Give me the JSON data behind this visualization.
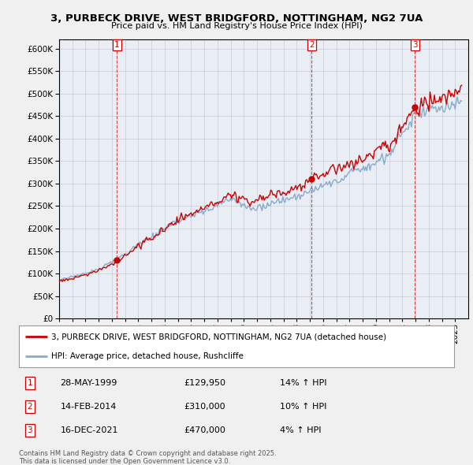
{
  "title1": "3, PURBECK DRIVE, WEST BRIDGFORD, NOTTINGHAM, NG2 7UA",
  "title2": "Price paid vs. HM Land Registry's House Price Index (HPI)",
  "legend_red": "3, PURBECK DRIVE, WEST BRIDGFORD, NOTTINGHAM, NG2 7UA (detached house)",
  "legend_blue": "HPI: Average price, detached house, Rushcliffe",
  "transactions": [
    {
      "num": 1,
      "date": "28-MAY-1999",
      "price": "£129,950",
      "hpi": "14% ↑ HPI",
      "year": 1999.38
    },
    {
      "num": 2,
      "date": "14-FEB-2014",
      "price": "£310,000",
      "hpi": "10% ↑ HPI",
      "year": 2014.12
    },
    {
      "num": 3,
      "date": "16-DEC-2021",
      "price": "£470,000",
      "hpi": "4% ↑ HPI",
      "year": 2021.96
    }
  ],
  "footer1": "Contains HM Land Registry data © Crown copyright and database right 2025.",
  "footer2": "This data is licensed under the Open Government Licence v3.0.",
  "ylim": [
    0,
    620000
  ],
  "yticks": [
    0,
    50000,
    100000,
    150000,
    200000,
    250000,
    300000,
    350000,
    400000,
    450000,
    500000,
    550000,
    600000
  ],
  "background_color": "#f0f0f0",
  "plot_bg": "#e8eef4",
  "red_color": "#cc0000",
  "blue_color": "#88aacc",
  "sale_years": [
    1999.38,
    2014.12,
    2021.96
  ],
  "sale_prices": [
    129950,
    310000,
    470000
  ]
}
